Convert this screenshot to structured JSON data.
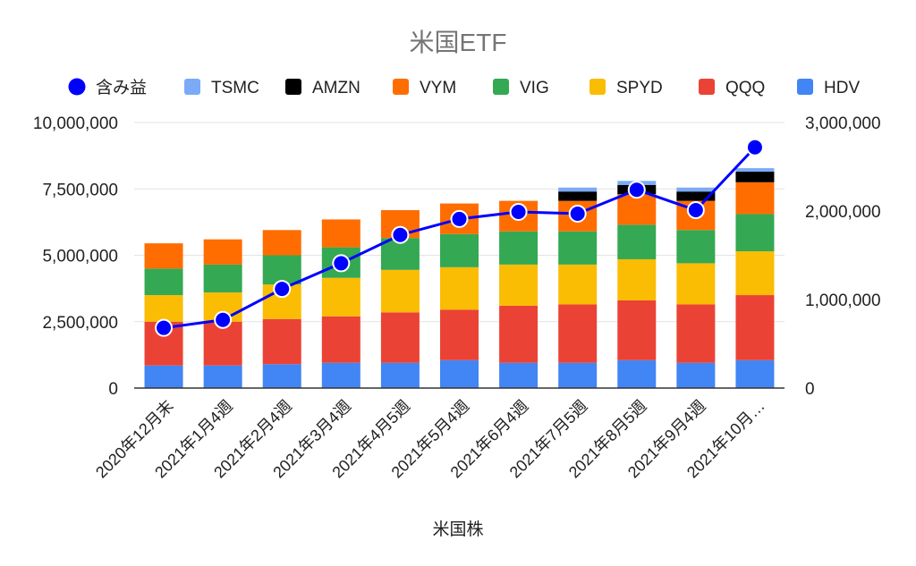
{
  "chart_data": {
    "type": "bar",
    "stacked": true,
    "title": "米国ETF",
    "xlabel": "米国株",
    "categories": [
      "2020年12月末",
      "2021年1月4週",
      "2021年2月4週",
      "2021年3月4週",
      "2021年4月5週",
      "2021年5月4週",
      "2021年6月4週",
      "2021年7月5週",
      "2021年8月5週",
      "2021年9月4週",
      "2021年10月…"
    ],
    "ylim_left": [
      0,
      10000000
    ],
    "ylim_right": [
      0,
      3000000
    ],
    "yticks_left": [
      0,
      2500000,
      5000000,
      7500000,
      10000000
    ],
    "yticks_right": [
      0,
      1000000,
      2000000,
      3000000
    ],
    "ytick_labels_left": [
      "0",
      "2,500,000",
      "5,000,000",
      "7,500,000",
      "10,000,000"
    ],
    "ytick_labels_right": [
      "0",
      "1,000,000",
      "2,000,000",
      "3,000,000"
    ],
    "legend_position": "top",
    "legend_order": [
      "含み益",
      "TSMC",
      "AMZN",
      "VYM",
      "VIG",
      "SPYD",
      "QQQ",
      "HDV"
    ],
    "series": [
      {
        "name": "HDV",
        "color": "#4285F4",
        "values": [
          850000,
          850000,
          900000,
          950000,
          950000,
          1050000,
          950000,
          950000,
          1050000,
          950000,
          1050000
        ]
      },
      {
        "name": "QQQ",
        "color": "#EA4335",
        "values": [
          1650000,
          1650000,
          1700000,
          1750000,
          1900000,
          1900000,
          2150000,
          2200000,
          2250000,
          2200000,
          2450000
        ]
      },
      {
        "name": "SPYD",
        "color": "#FBBC04",
        "values": [
          1000000,
          1100000,
          1300000,
          1450000,
          1600000,
          1600000,
          1550000,
          1500000,
          1550000,
          1550000,
          1650000
        ]
      },
      {
        "name": "VIG",
        "color": "#34A853",
        "values": [
          1000000,
          1050000,
          1100000,
          1150000,
          1200000,
          1250000,
          1250000,
          1250000,
          1300000,
          1250000,
          1400000
        ]
      },
      {
        "name": "VYM",
        "color": "#FF6D01",
        "values": [
          950000,
          950000,
          950000,
          1050000,
          1050000,
          1150000,
          1150000,
          1150000,
          1150000,
          1100000,
          1200000
        ]
      },
      {
        "name": "AMZN",
        "color": "#000000",
        "values": [
          0,
          0,
          0,
          0,
          0,
          0,
          0,
          350000,
          350000,
          350000,
          400000
        ]
      },
      {
        "name": "TSMC",
        "color": "#7BAAF7",
        "values": [
          0,
          0,
          0,
          0,
          0,
          0,
          0,
          150000,
          150000,
          150000,
          130000
        ]
      }
    ],
    "line_series": {
      "name": "含み益",
      "axis": "right",
      "color": "#0000FF",
      "values": [
        680000,
        770000,
        1120000,
        1410000,
        1730000,
        1910000,
        1990000,
        1970000,
        2240000,
        2010000,
        2720000
      ]
    }
  }
}
